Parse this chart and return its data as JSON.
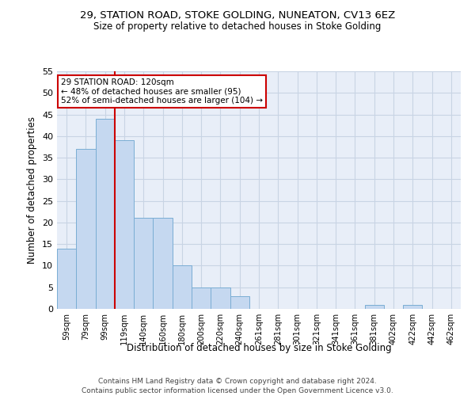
{
  "title1": "29, STATION ROAD, STOKE GOLDING, NUNEATON, CV13 6EZ",
  "title2": "Size of property relative to detached houses in Stoke Golding",
  "xlabel": "Distribution of detached houses by size in Stoke Golding",
  "ylabel": "Number of detached properties",
  "categories": [
    "59sqm",
    "79sqm",
    "99sqm",
    "119sqm",
    "140sqm",
    "160sqm",
    "180sqm",
    "200sqm",
    "220sqm",
    "240sqm",
    "261sqm",
    "281sqm",
    "301sqm",
    "321sqm",
    "341sqm",
    "361sqm",
    "381sqm",
    "402sqm",
    "422sqm",
    "442sqm",
    "462sqm"
  ],
  "values": [
    14,
    37,
    44,
    39,
    21,
    21,
    10,
    5,
    5,
    3,
    0,
    0,
    0,
    0,
    0,
    0,
    1,
    0,
    1,
    0,
    0
  ],
  "bar_color": "#c5d8f0",
  "bar_edge_color": "#7aadd4",
  "grid_color": "#c8d4e4",
  "background_color": "#e8eef8",
  "property_line_color": "#cc0000",
  "annotation_line1": "29 STATION ROAD: 120sqm",
  "annotation_line2": "← 48% of detached houses are smaller (95)",
  "annotation_line3": "52% of semi-detached houses are larger (104) →",
  "annotation_box_color": "#cc0000",
  "ylim": [
    0,
    55
  ],
  "yticks": [
    0,
    5,
    10,
    15,
    20,
    25,
    30,
    35,
    40,
    45,
    50,
    55
  ],
  "footer1": "Contains HM Land Registry data © Crown copyright and database right 2024.",
  "footer2": "Contains public sector information licensed under the Open Government Licence v3.0."
}
